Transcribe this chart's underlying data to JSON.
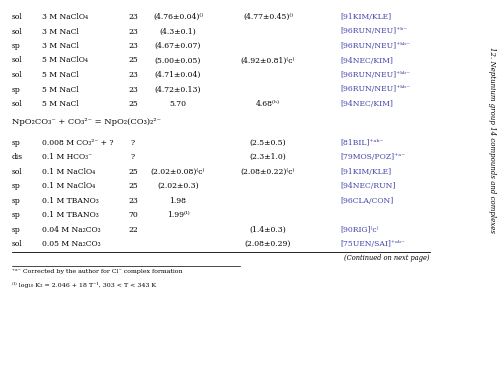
{
  "title_sidebar": "12. Neptunium group 14 compounds and complexes",
  "bg_color": "#ffffff",
  "text_color": "#000000",
  "link_color": "#4444aa",
  "table_rows_top": [
    {
      "method": "sol",
      "medium": "3 M NaClO₄",
      "t": "23",
      "log_beta": "(4.76±0.04)⁽⁾",
      "log_beta0": "(4.77±0.45)⁽⁾",
      "ref": "[91KIM/KLE]"
    },
    {
      "method": "sol",
      "medium": "3 M NaCl",
      "t": "23",
      "log_beta": "(4.3±0.1)",
      "log_beta0": "",
      "ref": "[96RUN/NEU]⁺ᵇ⁻"
    },
    {
      "method": "sp",
      "medium": "3 M NaCl",
      "t": "23",
      "log_beta": "(4.67±0.07)",
      "log_beta0": "",
      "ref": "[96RUN/NEU]⁺ᵏᵇ⁻"
    },
    {
      "method": "sol",
      "medium": "5 M NaClO₄",
      "t": "25",
      "log_beta": "(5.00±0.05)",
      "log_beta0": "(4.92±0.81)⁽ᴄ⁾",
      "ref": "[94NEC/KIM]"
    },
    {
      "method": "sol",
      "medium": "5 M NaCl",
      "t": "23",
      "log_beta": "(4.71±0.04)",
      "log_beta0": "",
      "ref": "[96RUN/NEU]⁺ᵏᵇ⁻"
    },
    {
      "method": "sp",
      "medium": "5 M NaCl",
      "t": "23",
      "log_beta": "(4.72±0.13)",
      "log_beta0": "",
      "ref": "[96RUN/NEU]⁺ᵏᵇ⁻"
    },
    {
      "method": "sol",
      "medium": "5 M NaCl",
      "t": "25",
      "log_beta": "5.70",
      "log_beta0": "4.68⁽ʰ⁾",
      "ref": "[94NEC/KIM]"
    }
  ],
  "reaction2": "NpO₂CO₃⁻ + CO₃²⁻ = NpO₂(CO₃)₂²⁻",
  "table_rows_bottom": [
    {
      "method": "sp",
      "medium": "0.008 M CO₃²⁻ + ?",
      "t": "?",
      "log_beta": "",
      "log_beta0": "(2.5±0.5)",
      "ref": "[81BIL]⁺ᵃᵇ⁻"
    },
    {
      "method": "dis",
      "medium": "0.1 M HCO₃⁻",
      "t": "?",
      "log_beta": "",
      "log_beta0": "(2.3±1.0)",
      "ref": "[79MOS/POZ]⁺ᵃ⁻"
    },
    {
      "method": "sol",
      "medium": "0.1 M NaClO₄",
      "t": "25",
      "log_beta": "(2.02±0.08)⁽ᴄ⁾",
      "log_beta0": "(2.08±0.22)⁽ᴄ⁾",
      "ref": "[91KIM/KLE]"
    },
    {
      "method": "sp",
      "medium": "0.1 M NaClO₄",
      "t": "25",
      "log_beta": "(2.02±0.3)",
      "log_beta0": "",
      "ref": "[94NEC/RUN]"
    },
    {
      "method": "sp",
      "medium": "0.1 M TBANO₃",
      "t": "23",
      "log_beta": "1.98",
      "log_beta0": "",
      "ref": "[96CLA/CON]"
    },
    {
      "method": "sp",
      "medium": "0.1 M TBANO₃",
      "t": "70",
      "log_beta": "1.99⁽ˡ⁾",
      "log_beta0": "",
      "ref": ""
    },
    {
      "method": "sp",
      "medium": "0.04 M Na₂CO₃",
      "t": "22",
      "log_beta": "",
      "log_beta0": "(1.4±0.3)",
      "ref": "[90RIG]⁽ᴄ⁾"
    },
    {
      "method": "sol",
      "medium": "0.05 M Na₂CO₃",
      "t": "",
      "log_beta": "",
      "log_beta0": "(2.08±0.29)",
      "ref": "[75UEN/SAI]⁺ᵃᵇ⁻"
    }
  ],
  "continued": "(Continued on next page)",
  "footnote_a": "⁺ᵃ⁻ Corrected by the author for Cl⁻ complex formation",
  "footnote_b": "⁽ˡ⁾ log₁₀ K₂ = 2.046 + 18 T⁻¹, 303 < T < 343 K"
}
